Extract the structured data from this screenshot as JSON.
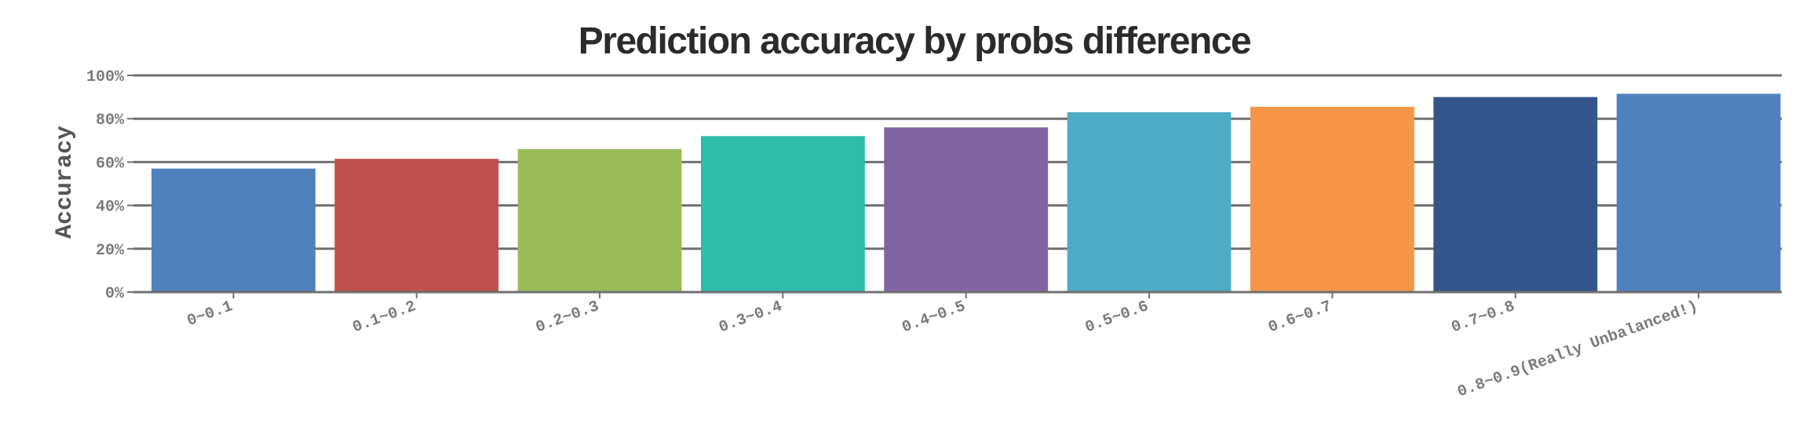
{
  "chart_data": {
    "type": "bar",
    "title": "Prediction accuracy by probs difference",
    "xlabel": "",
    "ylabel": "Accuracy",
    "categories": [
      "0~0.1",
      "0.1~0.2",
      "0.2~0.3",
      "0.3~0.4",
      "0.4~0.5",
      "0.5~0.6",
      "0.6~0.7",
      "0.7~0.8",
      "0.8~0.9(Really Unbalanced!)"
    ],
    "values": [
      57,
      61.5,
      66,
      72,
      76,
      83,
      85.5,
      90,
      91.5
    ],
    "colors": [
      "#4f81bd",
      "#c0504d",
      "#9bbb59",
      "#2fbca9",
      "#8064a2",
      "#4facc6",
      "#f79646",
      "#33558b",
      "#4f81bd"
    ],
    "ylim": [
      0,
      100
    ],
    "yticks": [
      "0%",
      "20%",
      "40%",
      "60%",
      "80%",
      "100%"
    ],
    "ytick_values": [
      0,
      20,
      40,
      60,
      80,
      100
    ],
    "grid": true,
    "legend": "none"
  }
}
